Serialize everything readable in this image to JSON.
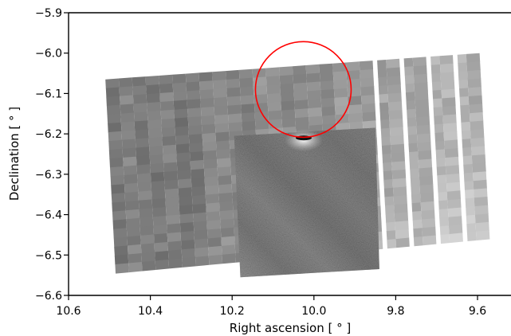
{
  "chart_data": {
    "type": "heatmap",
    "title": "",
    "xlabel": "Right ascension [ ° ]",
    "ylabel": "Declination [ ° ]",
    "xlim": [
      10.6,
      9.52
    ],
    "ylim": [
      -6.6,
      -5.9
    ],
    "x_ticks": [
      {
        "value": 10.6,
        "label": "10.6"
      },
      {
        "value": 10.4,
        "label": "10.4"
      },
      {
        "value": 10.2,
        "label": "10.2"
      },
      {
        "value": 10.0,
        "label": "10.0"
      },
      {
        "value": 9.8,
        "label": "9.8"
      },
      {
        "value": 9.6,
        "label": "9.6"
      }
    ],
    "y_ticks": [
      {
        "value": -5.9,
        "label": "−5.9"
      },
      {
        "value": -6.0,
        "label": "−6.0"
      },
      {
        "value": -6.1,
        "label": "−6.1"
      },
      {
        "value": -6.2,
        "label": "−6.2"
      },
      {
        "value": -6.3,
        "label": "−6.3"
      },
      {
        "value": -6.4,
        "label": "−6.4"
      },
      {
        "value": -6.5,
        "label": "−6.5"
      },
      {
        "value": -6.6,
        "label": "−6.6"
      }
    ],
    "grid": false,
    "colormap": "grayscale",
    "strip_mosaic": {
      "corners_radec": [
        [
          10.51,
          -6.065
        ],
        [
          9.595,
          -6.0
        ],
        [
          9.57,
          -6.46
        ],
        [
          10.485,
          -6.545
        ]
      ]
    },
    "detector_image": {
      "corners_radec": [
        [
          10.195,
          -6.205
        ],
        [
          9.85,
          -6.185
        ],
        [
          9.84,
          -6.535
        ],
        [
          10.18,
          -6.555
        ]
      ]
    },
    "circle": {
      "center": [
        10.026,
        -6.09
      ],
      "radius_deg": 0.117,
      "color": "#ff0000"
    },
    "bright_source": {
      "ra": 10.025,
      "dec": -6.21
    }
  }
}
